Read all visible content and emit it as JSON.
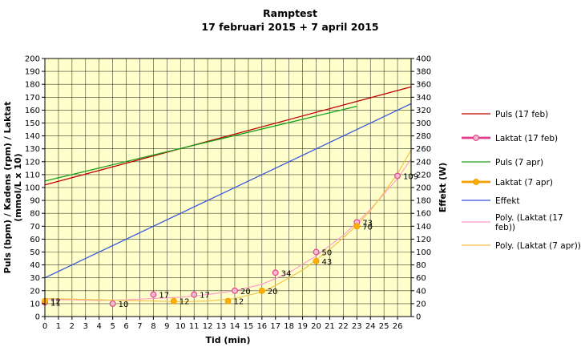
{
  "chart_data": {
    "type": "line",
    "title": "Ramptest",
    "subtitle": "17 februari 2015 + 7 april 2015",
    "xlabel": "Tid (min)",
    "ylabel_line1": "Puls (bpm) / Kadens (rpm) / Laktat",
    "ylabel_line2": "(mmol/L x 10)",
    "y2label": "Effekt (W)",
    "xlim": [
      0,
      27
    ],
    "ylim": [
      0,
      200
    ],
    "y2lim": [
      0,
      400
    ],
    "x_ticks": [
      0,
      1,
      2,
      3,
      4,
      5,
      6,
      7,
      8,
      9,
      10,
      11,
      12,
      13,
      14,
      15,
      16,
      17,
      18,
      19,
      20,
      21,
      22,
      23,
      24,
      25,
      26
    ],
    "y_ticks": [
      0,
      10,
      20,
      30,
      40,
      50,
      60,
      70,
      80,
      90,
      100,
      110,
      120,
      130,
      140,
      150,
      160,
      170,
      180,
      190,
      200
    ],
    "y2_ticks": [
      0,
      20,
      40,
      60,
      80,
      100,
      120,
      140,
      160,
      180,
      200,
      220,
      240,
      260,
      280,
      300,
      320,
      340,
      360,
      380,
      400
    ],
    "plot_background": "#ffffcc",
    "grid": true,
    "legend_position": "right",
    "series": [
      {
        "name": "Puls (17 feb)",
        "kind": "line",
        "color": "#c00000",
        "axis": "left",
        "x": [
          0,
          27
        ],
        "y": [
          102,
          178
        ]
      },
      {
        "name": "Laktat (17 feb)",
        "kind": "marker-line",
        "color": "#e03c8a",
        "marker_fill": "#f4b8d0",
        "axis": "left",
        "x": [
          0,
          5,
          8,
          11,
          14,
          17,
          20,
          23,
          26
        ],
        "y": [
          11,
          10,
          17,
          17,
          20,
          34,
          50,
          73,
          109
        ],
        "labels": [
          "11",
          "10",
          "17",
          "17",
          "20",
          "34",
          "50",
          "73",
          "109"
        ]
      },
      {
        "name": "Puls (7 apr)",
        "kind": "line",
        "color": "#1aa01a",
        "axis": "left",
        "x": [
          0,
          23
        ],
        "y": [
          105,
          163
        ]
      },
      {
        "name": "Laktat (7 apr)",
        "kind": "marker-line",
        "color": "#f0a000",
        "marker_fill": "#ffb000",
        "axis": "left",
        "x": [
          0,
          9.5,
          13.5,
          16,
          20,
          23
        ],
        "y": [
          12,
          12,
          12,
          20,
          43,
          70
        ],
        "labels": [
          "12",
          "12",
          "12",
          "20",
          "43",
          "70"
        ]
      },
      {
        "name": "Effekt",
        "kind": "line",
        "color": "#3355dd",
        "axis": "right",
        "x": [
          0,
          27
        ],
        "y": [
          60,
          330
        ]
      },
      {
        "name": "Poly. (Laktat (17\nfeb))",
        "kind": "trend",
        "color": "#ff99cc",
        "axis": "left",
        "x": [
          0,
          2,
          4,
          6,
          8,
          10,
          12,
          14,
          16,
          18,
          20,
          22,
          24,
          26,
          27
        ],
        "y": [
          13,
          13,
          12.5,
          13,
          14,
          15,
          17,
          20,
          25,
          34,
          47,
          63,
          83,
          107,
          122
        ]
      },
      {
        "name": "Poly. (Laktat (7 apr))",
        "kind": "trend",
        "color": "#f0c040",
        "axis": "left",
        "x": [
          0,
          2,
          4,
          6,
          8,
          10,
          12,
          14,
          16,
          17,
          18,
          19,
          20,
          21,
          22,
          23,
          24,
          25,
          26,
          27
        ],
        "y": [
          14,
          13.5,
          13,
          12.5,
          12,
          11.5,
          12,
          14,
          19,
          24,
          30,
          36,
          44,
          52,
          61,
          71,
          82,
          96,
          111,
          129
        ]
      }
    ]
  }
}
